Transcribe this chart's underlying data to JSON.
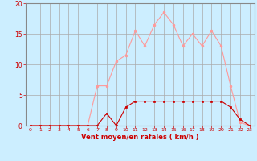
{
  "hours": [
    0,
    1,
    2,
    3,
    4,
    5,
    6,
    7,
    8,
    9,
    10,
    11,
    12,
    13,
    14,
    15,
    16,
    17,
    18,
    19,
    20,
    21,
    22,
    23
  ],
  "wind_avg": [
    0,
    0,
    0,
    0,
    0,
    0,
    0,
    0,
    2,
    0,
    3,
    4,
    4,
    4,
    4,
    4,
    4,
    4,
    4,
    4,
    4,
    3,
    1,
    0
  ],
  "wind_gust": [
    0,
    0,
    0,
    0,
    0,
    0,
    0,
    6.5,
    6.5,
    10.5,
    11.5,
    15.5,
    13,
    16.5,
    18.5,
    16.5,
    13,
    15,
    13,
    15.5,
    13,
    6.5,
    0.5,
    0
  ],
  "line_avg_color": "#cc0000",
  "line_gust_color": "#ff9999",
  "bg_color": "#cceeff",
  "grid_color": "#aaaaaa",
  "axis_label_color": "#cc0000",
  "tick_color": "#cc0000",
  "xlabel": "Vent moyen/en rafales ( km/h )",
  "ylim": [
    0,
    20
  ],
  "xlim": [
    -0.5,
    23.5
  ],
  "yticks": [
    0,
    5,
    10,
    15,
    20
  ],
  "xticks": [
    0,
    1,
    2,
    3,
    4,
    5,
    6,
    7,
    8,
    9,
    10,
    11,
    12,
    13,
    14,
    15,
    16,
    17,
    18,
    19,
    20,
    21,
    22,
    23
  ]
}
